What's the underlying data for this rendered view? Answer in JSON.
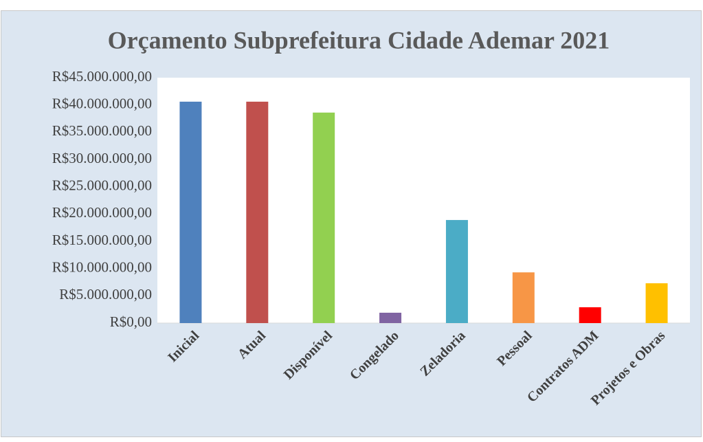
{
  "chart_data": {
    "type": "bar",
    "title": "Orçamento Subprefeitura Cidade Ademar 2021",
    "categories": [
      "Inicial",
      "Atual",
      "Disponível",
      "Congelado",
      "Zeladoria",
      "Pessoal",
      "Contratos ADM",
      "Projetos e Obras"
    ],
    "values": [
      40600000,
      40600000,
      38600000,
      1900000,
      18900000,
      9300000,
      2900000,
      7300000
    ],
    "colors": [
      "#4f81bd",
      "#c0504d",
      "#92d050",
      "#8064a2",
      "#4bacc6",
      "#f79646",
      "#ff0000",
      "#ffc000"
    ],
    "ylim": [
      0,
      45000000
    ],
    "yticks": [
      {
        "value": 0,
        "label": "R$0,00"
      },
      {
        "value": 5000000,
        "label": "R$5.000.000,00"
      },
      {
        "value": 10000000,
        "label": "R$10.000.000,00"
      },
      {
        "value": 15000000,
        "label": "R$15.000.000,00"
      },
      {
        "value": 20000000,
        "label": "R$20.000.000,00"
      },
      {
        "value": 25000000,
        "label": "R$25.000.000,00"
      },
      {
        "value": 30000000,
        "label": "R$30.000.000,00"
      },
      {
        "value": 35000000,
        "label": "R$35.000.000,00"
      },
      {
        "value": 40000000,
        "label": "R$40.000.000,00"
      },
      {
        "value": 45000000,
        "label": "R$45.000.000,00"
      }
    ],
    "grid": false
  }
}
